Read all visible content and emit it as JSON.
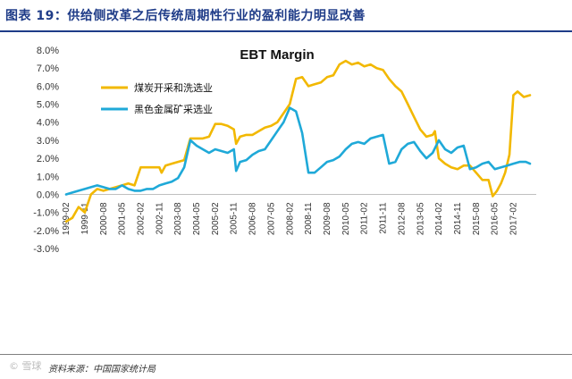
{
  "header": {
    "title": "图表 19：供给侧改革之后传统周期性行业的盈利能力明显改善"
  },
  "footer": {
    "source": "资料来源：中国国家统计局",
    "watermark": "© 雪球"
  },
  "chart_data": {
    "type": "line",
    "title": "EBT Margin",
    "xlabel": "",
    "ylabel": "",
    "ylim": [
      -3,
      8
    ],
    "yticks": [
      8,
      7,
      6,
      5,
      4,
      3,
      2,
      1,
      0,
      -1,
      -2,
      -3
    ],
    "ytick_format": "percent_1dp",
    "x_range": [
      1999.08,
      2018.0
    ],
    "x_tick_labels": [
      "1999-02",
      "1999-11",
      "2000-08",
      "2001-05",
      "2002-02",
      "2002-11",
      "2003-08",
      "2004-05",
      "2005-02",
      "2005-11",
      "2006-08",
      "2007-05",
      "2008-02",
      "2008-11",
      "2009-08",
      "2010-05",
      "2011-02",
      "2011-11",
      "2012-08",
      "2013-05",
      "2014-02",
      "2014-11",
      "2015-08",
      "2016-05",
      "2017-02"
    ],
    "legend_position": "top-left",
    "series": [
      {
        "name": "煤炭开采和洗选业",
        "color": "#f2b800",
        "x": [
          1999.08,
          1999.33,
          1999.58,
          1999.83,
          2000.08,
          2000.33,
          2000.58,
          2000.83,
          2001.08,
          2001.33,
          2001.58,
          2001.83,
          2002.08,
          2002.33,
          2002.58,
          2002.83,
          2002.92,
          2003.08,
          2003.33,
          2003.58,
          2003.83,
          2004.08,
          2004.33,
          2004.58,
          2004.83,
          2005.08,
          2005.33,
          2005.58,
          2005.83,
          2005.92,
          2006.08,
          2006.33,
          2006.58,
          2006.83,
          2007.08,
          2007.33,
          2007.58,
          2007.83,
          2008.08,
          2008.33,
          2008.58,
          2008.83,
          2009.08,
          2009.33,
          2009.58,
          2009.83,
          2010.08,
          2010.33,
          2010.58,
          2010.83,
          2011.08,
          2011.33,
          2011.58,
          2011.83,
          2012.08,
          2012.33,
          2012.58,
          2012.83,
          2013.08,
          2013.33,
          2013.58,
          2013.83,
          2013.92,
          2014.08,
          2014.33,
          2014.58,
          2014.83,
          2015.08,
          2015.33,
          2015.58,
          2015.83,
          2016.08,
          2016.25,
          2016.42,
          2016.58,
          2016.75,
          2016.92,
          2017.08,
          2017.25,
          2017.5,
          2017.75
        ],
        "values": [
          -1.5,
          -1.3,
          -0.7,
          -1.0,
          0.0,
          0.3,
          0.2,
          0.3,
          0.4,
          0.5,
          0.6,
          0.5,
          1.5,
          1.5,
          1.5,
          1.5,
          1.2,
          1.6,
          1.7,
          1.8,
          1.9,
          3.1,
          3.1,
          3.1,
          3.2,
          3.9,
          3.9,
          3.8,
          3.6,
          2.8,
          3.2,
          3.3,
          3.3,
          3.5,
          3.7,
          3.8,
          4.0,
          4.5,
          5.0,
          6.4,
          6.5,
          6.0,
          6.1,
          6.2,
          6.5,
          6.6,
          7.2,
          7.4,
          7.2,
          7.3,
          7.1,
          7.2,
          7.0,
          6.9,
          6.4,
          6.0,
          5.7,
          5.0,
          4.3,
          3.6,
          3.2,
          3.3,
          3.5,
          2.0,
          1.7,
          1.5,
          1.4,
          1.6,
          1.6,
          1.2,
          0.8,
          0.8,
          -0.1,
          0.2,
          0.6,
          1.2,
          2.2,
          5.5,
          5.7,
          5.4,
          5.5
        ]
      },
      {
        "name": "黑色金属矿采选业",
        "color": "#1fa9d8",
        "x": [
          1999.08,
          1999.33,
          1999.58,
          1999.83,
          2000.08,
          2000.33,
          2000.58,
          2000.83,
          2001.08,
          2001.33,
          2001.58,
          2001.83,
          2002.08,
          2002.33,
          2002.58,
          2002.83,
          2003.08,
          2003.33,
          2003.58,
          2003.83,
          2004.08,
          2004.33,
          2004.58,
          2004.83,
          2005.08,
          2005.33,
          2005.58,
          2005.83,
          2005.92,
          2006.08,
          2006.33,
          2006.58,
          2006.83,
          2007.08,
          2007.33,
          2007.58,
          2007.83,
          2008.08,
          2008.33,
          2008.58,
          2008.83,
          2009.08,
          2009.33,
          2009.58,
          2009.83,
          2010.08,
          2010.33,
          2010.58,
          2010.83,
          2011.08,
          2011.33,
          2011.58,
          2011.83,
          2012.08,
          2012.33,
          2012.58,
          2012.83,
          2013.08,
          2013.33,
          2013.58,
          2013.83,
          2014.08,
          2014.33,
          2014.58,
          2014.83,
          2015.08,
          2015.33,
          2015.58,
          2015.83,
          2016.08,
          2016.33,
          2016.58,
          2016.83,
          2017.08,
          2017.33,
          2017.58,
          2017.75
        ],
        "values": [
          0.0,
          0.1,
          0.2,
          0.3,
          0.4,
          0.5,
          0.4,
          0.3,
          0.3,
          0.5,
          0.3,
          0.2,
          0.2,
          0.3,
          0.3,
          0.5,
          0.6,
          0.7,
          0.9,
          1.5,
          3.0,
          2.7,
          2.5,
          2.3,
          2.5,
          2.4,
          2.3,
          2.5,
          1.3,
          1.8,
          1.9,
          2.2,
          2.4,
          2.5,
          3.0,
          3.5,
          4.0,
          4.8,
          4.6,
          3.4,
          1.2,
          1.2,
          1.5,
          1.8,
          1.9,
          2.1,
          2.5,
          2.8,
          2.9,
          2.8,
          3.1,
          3.2,
          3.3,
          1.7,
          1.8,
          2.5,
          2.8,
          2.9,
          2.4,
          2.0,
          2.3,
          3.0,
          2.5,
          2.3,
          2.6,
          2.7,
          1.4,
          1.5,
          1.7,
          1.8,
          1.4,
          1.5,
          1.6,
          1.7,
          1.8,
          1.8,
          1.7
        ]
      }
    ]
  }
}
